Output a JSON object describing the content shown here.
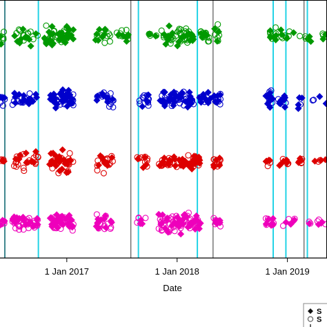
{
  "chart_data": {
    "type": "scatter",
    "xlabel": "Date",
    "ylabel": "",
    "x_ticks": [
      {
        "date": "2017-01-01",
        "label": "1 Jan 2017"
      },
      {
        "date": "2018-01-01",
        "label": "1 Jan 2018"
      },
      {
        "date": "2019-01-01",
        "label": "1 Jan 2019"
      }
    ],
    "x_range": [
      "2016-05-25",
      "2019-05-12"
    ],
    "grid": false,
    "legend_position": "bottom-right",
    "legend_entries": [
      {
        "marker": "filled-diamond",
        "text": "S"
      },
      {
        "marker": "open-circle",
        "text": "S"
      },
      {
        "marker": "vertical-bar",
        "text": ""
      },
      {
        "marker": "vertical-dashed-cyan",
        "text": ""
      }
    ],
    "black_vertical_lines": [
      "2016-06-10",
      "2017-08-01",
      "2018-04-30",
      "2019-02-25"
    ],
    "cyan_vertical_lines": [
      "2016-06-10",
      "2016-09-29",
      "2017-08-26",
      "2018-03-09",
      "2018-11-15",
      "2018-12-27",
      "2019-03-08"
    ],
    "color_filled_diamond": "#111111",
    "color_open_circle": "#555555",
    "series": [
      {
        "color": "#009900",
        "baseline": 0,
        "clusters": [
          {
            "start": "2016-05-25",
            "end": "2016-06-10",
            "filled": 2,
            "open": 4,
            "spread": 1.0
          },
          {
            "start": "2016-07-05",
            "end": "2016-09-29",
            "filled": 10,
            "open": 14,
            "spread": 1.1
          },
          {
            "start": "2016-10-15",
            "end": "2017-01-25",
            "filled": 28,
            "open": 22,
            "spread": 1.1
          },
          {
            "start": "2017-04-05",
            "end": "2017-05-25",
            "filled": 8,
            "open": 8,
            "spread": 0.8
          },
          {
            "start": "2017-06-15",
            "end": "2017-07-25",
            "filled": 6,
            "open": 8,
            "spread": 0.7
          },
          {
            "start": "2017-09-25",
            "end": "2017-10-25",
            "filled": 2,
            "open": 4,
            "spread": 0.5
          },
          {
            "start": "2017-11-10",
            "end": "2018-02-25",
            "filled": 26,
            "open": 30,
            "spread": 1.0
          },
          {
            "start": "2018-03-20",
            "end": "2018-04-20",
            "filled": 4,
            "open": 14,
            "spread": 1.0
          },
          {
            "start": "2018-05-05",
            "end": "2018-05-25",
            "filled": 3,
            "open": 6,
            "spread": 1.1
          },
          {
            "start": "2018-11-01",
            "end": "2018-11-25",
            "filled": 6,
            "open": 6,
            "spread": 0.9
          },
          {
            "start": "2018-12-10",
            "end": "2019-01-10",
            "filled": 3,
            "open": 6,
            "spread": 0.7
          },
          {
            "start": "2019-01-15",
            "end": "2019-02-20",
            "filled": 1,
            "open": 1,
            "spread": 0.6
          },
          {
            "start": "2019-03-01",
            "end": "2019-03-20",
            "filled": 3,
            "open": 2,
            "spread": 0.7
          },
          {
            "start": "2019-04-15",
            "end": "2019-05-10",
            "filled": 2,
            "open": 2,
            "spread": 0.5
          }
        ]
      },
      {
        "color": "#0000cc",
        "baseline": 1,
        "clusters": [
          {
            "start": "2016-05-25",
            "end": "2016-06-10",
            "filled": 3,
            "open": 4,
            "spread": 0.9
          },
          {
            "start": "2016-07-05",
            "end": "2016-09-29",
            "filled": 14,
            "open": 14,
            "spread": 0.8
          },
          {
            "start": "2016-11-05",
            "end": "2017-01-25",
            "filled": 34,
            "open": 18,
            "spread": 0.9
          },
          {
            "start": "2017-04-05",
            "end": "2017-06-05",
            "filled": 8,
            "open": 12,
            "spread": 1.0
          },
          {
            "start": "2017-08-25",
            "end": "2017-10-05",
            "filled": 4,
            "open": 10,
            "spread": 0.9
          },
          {
            "start": "2017-11-01",
            "end": "2018-02-25",
            "filled": 30,
            "open": 26,
            "spread": 0.8
          },
          {
            "start": "2018-03-15",
            "end": "2018-04-25",
            "filled": 10,
            "open": 4,
            "spread": 0.8
          },
          {
            "start": "2018-05-01",
            "end": "2018-05-25",
            "filled": 6,
            "open": 8,
            "spread": 1.0
          },
          {
            "start": "2018-10-20",
            "end": "2018-11-15",
            "filled": 10,
            "open": 4,
            "spread": 1.0
          },
          {
            "start": "2018-12-01",
            "end": "2019-01-10",
            "filled": 8,
            "open": 2,
            "spread": 0.8
          },
          {
            "start": "2019-02-01",
            "end": "2019-02-20",
            "filled": 4,
            "open": 1,
            "spread": 1.0
          },
          {
            "start": "2019-03-25",
            "end": "2019-05-10",
            "filled": 2,
            "open": 2,
            "spread": 0.6
          }
        ]
      },
      {
        "color": "#dd0000",
        "baseline": 2,
        "clusters": [
          {
            "start": "2016-05-25",
            "end": "2016-06-10",
            "filled": 2,
            "open": 4,
            "spread": 0.5
          },
          {
            "start": "2016-07-05",
            "end": "2016-09-29",
            "filled": 10,
            "open": 18,
            "spread": 1.1
          },
          {
            "start": "2016-11-05",
            "end": "2017-01-25",
            "filled": 28,
            "open": 12,
            "spread": 1.3
          },
          {
            "start": "2017-04-05",
            "end": "2017-06-05",
            "filled": 8,
            "open": 12,
            "spread": 1.1
          },
          {
            "start": "2017-08-20",
            "end": "2017-09-25",
            "filled": 4,
            "open": 8,
            "spread": 0.8
          },
          {
            "start": "2017-11-01",
            "end": "2018-03-20",
            "filled": 32,
            "open": 26,
            "spread": 0.8
          },
          {
            "start": "2018-05-01",
            "end": "2018-05-25",
            "filled": 5,
            "open": 8,
            "spread": 0.6
          },
          {
            "start": "2018-10-20",
            "end": "2018-11-20",
            "filled": 4,
            "open": 2,
            "spread": 0.5
          },
          {
            "start": "2018-12-05",
            "end": "2019-01-05",
            "filled": 5,
            "open": 3,
            "spread": 0.6
          },
          {
            "start": "2019-02-01",
            "end": "2019-02-20",
            "filled": 4,
            "open": 4,
            "spread": 0.6
          },
          {
            "start": "2019-04-01",
            "end": "2019-05-10",
            "filled": 3,
            "open": 2,
            "spread": 0.6
          }
        ]
      },
      {
        "color": "#ee00bb",
        "baseline": 3,
        "clusters": [
          {
            "start": "2016-05-25",
            "end": "2016-06-10",
            "filled": 3,
            "open": 4,
            "spread": 0.4
          },
          {
            "start": "2016-07-05",
            "end": "2016-09-29",
            "filled": 18,
            "open": 26,
            "spread": 0.9
          },
          {
            "start": "2016-11-05",
            "end": "2017-01-25",
            "filled": 28,
            "open": 20,
            "spread": 1.0
          },
          {
            "start": "2017-04-05",
            "end": "2017-06-05",
            "filled": 12,
            "open": 10,
            "spread": 1.0
          },
          {
            "start": "2017-08-20",
            "end": "2017-09-20",
            "filled": 3,
            "open": 4,
            "spread": 0.9
          },
          {
            "start": "2017-11-01",
            "end": "2018-03-20",
            "filled": 34,
            "open": 40,
            "spread": 1.1
          },
          {
            "start": "2018-05-01",
            "end": "2018-05-25",
            "filled": 4,
            "open": 6,
            "spread": 0.8
          },
          {
            "start": "2018-10-20",
            "end": "2018-11-20",
            "filled": 6,
            "open": 6,
            "spread": 0.9
          },
          {
            "start": "2018-12-15",
            "end": "2019-01-25",
            "filled": 4,
            "open": 3,
            "spread": 0.8
          },
          {
            "start": "2019-03-01",
            "end": "2019-03-20",
            "filled": 1,
            "open": 2,
            "spread": 0.5
          },
          {
            "start": "2019-04-10",
            "end": "2019-05-10",
            "filled": 3,
            "open": 3,
            "spread": 0.7
          }
        ]
      }
    ]
  }
}
